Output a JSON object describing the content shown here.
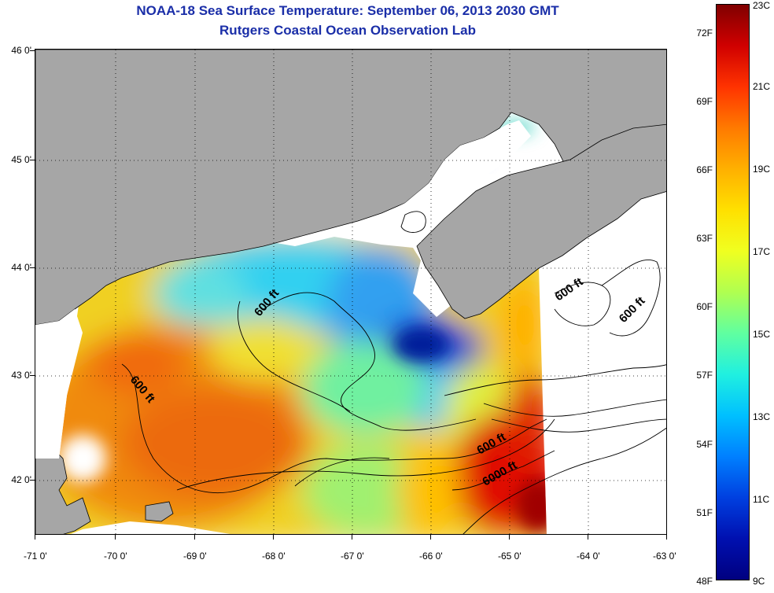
{
  "title_line1": "NOAA-18 Sea Surface Temperature:  September 06, 2013 2030 GMT",
  "title_line2": "Rutgers Coastal Ocean Observation Lab",
  "lat_labels": [
    "46 0'",
    "45 0'",
    "44 0'",
    "43 0'",
    "42 0'"
  ],
  "lon_labels": [
    "-71 0'",
    "-70 0'",
    "-69 0'",
    "-68 0'",
    "-67 0'",
    "-66 0'",
    "-65 0'",
    "-64 0'",
    "-63 0'"
  ],
  "contour_labels": [
    "600 ft",
    "600 ft",
    "600 ft",
    "600 ft",
    "600 ft",
    "6000 ft"
  ],
  "colorbar": {
    "fahrenheit": [
      "72F",
      "69F",
      "66F",
      "63F",
      "60F",
      "57F",
      "54F",
      "51F",
      "48F"
    ],
    "celsius": [
      "23C",
      "21C",
      "19C",
      "17C",
      "15C",
      "13C",
      "11C",
      "9C"
    ]
  },
  "colors": {
    "land": "#a6a6a6",
    "no_data": "#ffffff",
    "title": "#1a2ea8"
  }
}
